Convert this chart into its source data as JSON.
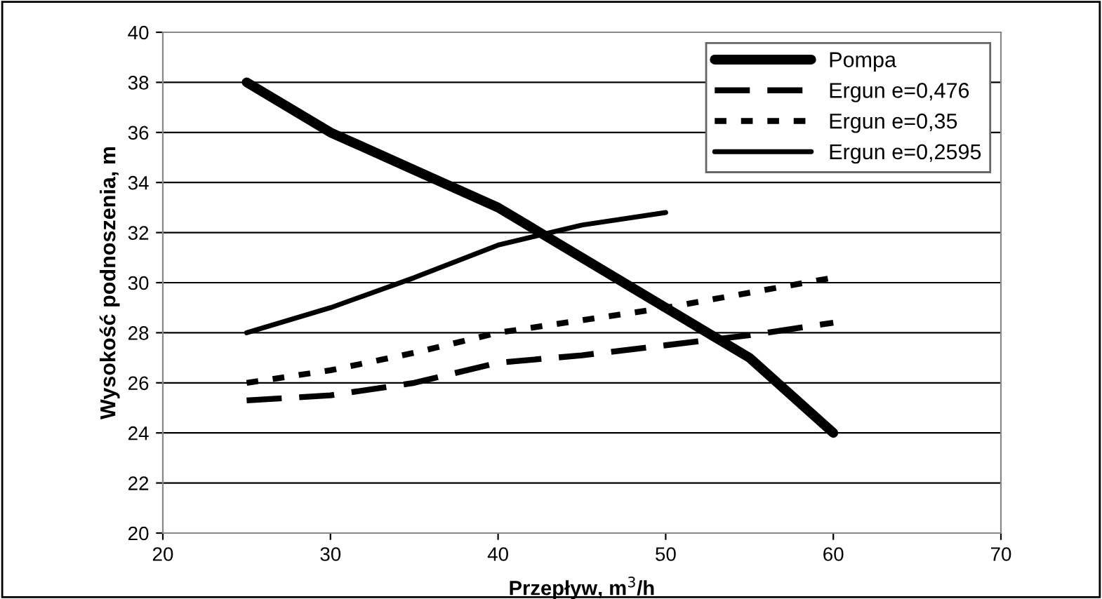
{
  "chart_data": {
    "type": "line",
    "xlabel": "Przepływ, m$^{3}$/h",
    "ylabel": "Wysokość podnoszenia, m",
    "x": [
      25,
      30,
      35,
      40,
      45,
      50,
      55,
      60
    ],
    "series": [
      {
        "name": "Pompa",
        "color": "#000000",
        "line_style": "solid",
        "values": [
          38,
          36,
          34.5,
          33,
          31,
          29,
          27,
          24
        ]
      },
      {
        "name": "Ergun e=0,476",
        "color": "#000000",
        "line_style": "dashed",
        "values": [
          25.3,
          25.5,
          26,
          26.8,
          27.1,
          27.5,
          27.9,
          28.4
        ]
      },
      {
        "name": "Ergun e=0,35",
        "color": "#000000",
        "line_style": "dotted",
        "values": [
          26,
          26.5,
          27.2,
          28,
          28.5,
          29,
          29.6,
          30.2
        ]
      },
      {
        "name": "Ergun e=0,2595",
        "color": "#000000",
        "line_style": "solid",
        "values": [
          28,
          29,
          30.2,
          31.5,
          32.3,
          32.8,
          null,
          null
        ]
      }
    ],
    "xlim": [
      20,
      70
    ],
    "xticks": [
      20,
      30,
      40,
      50,
      60,
      70
    ],
    "ylim": [
      20,
      40
    ],
    "yticks": [
      20,
      22,
      24,
      26,
      28,
      30,
      32,
      34,
      36,
      38,
      40
    ],
    "grid": "y",
    "legend": "top right",
    "marker": "none"
  }
}
